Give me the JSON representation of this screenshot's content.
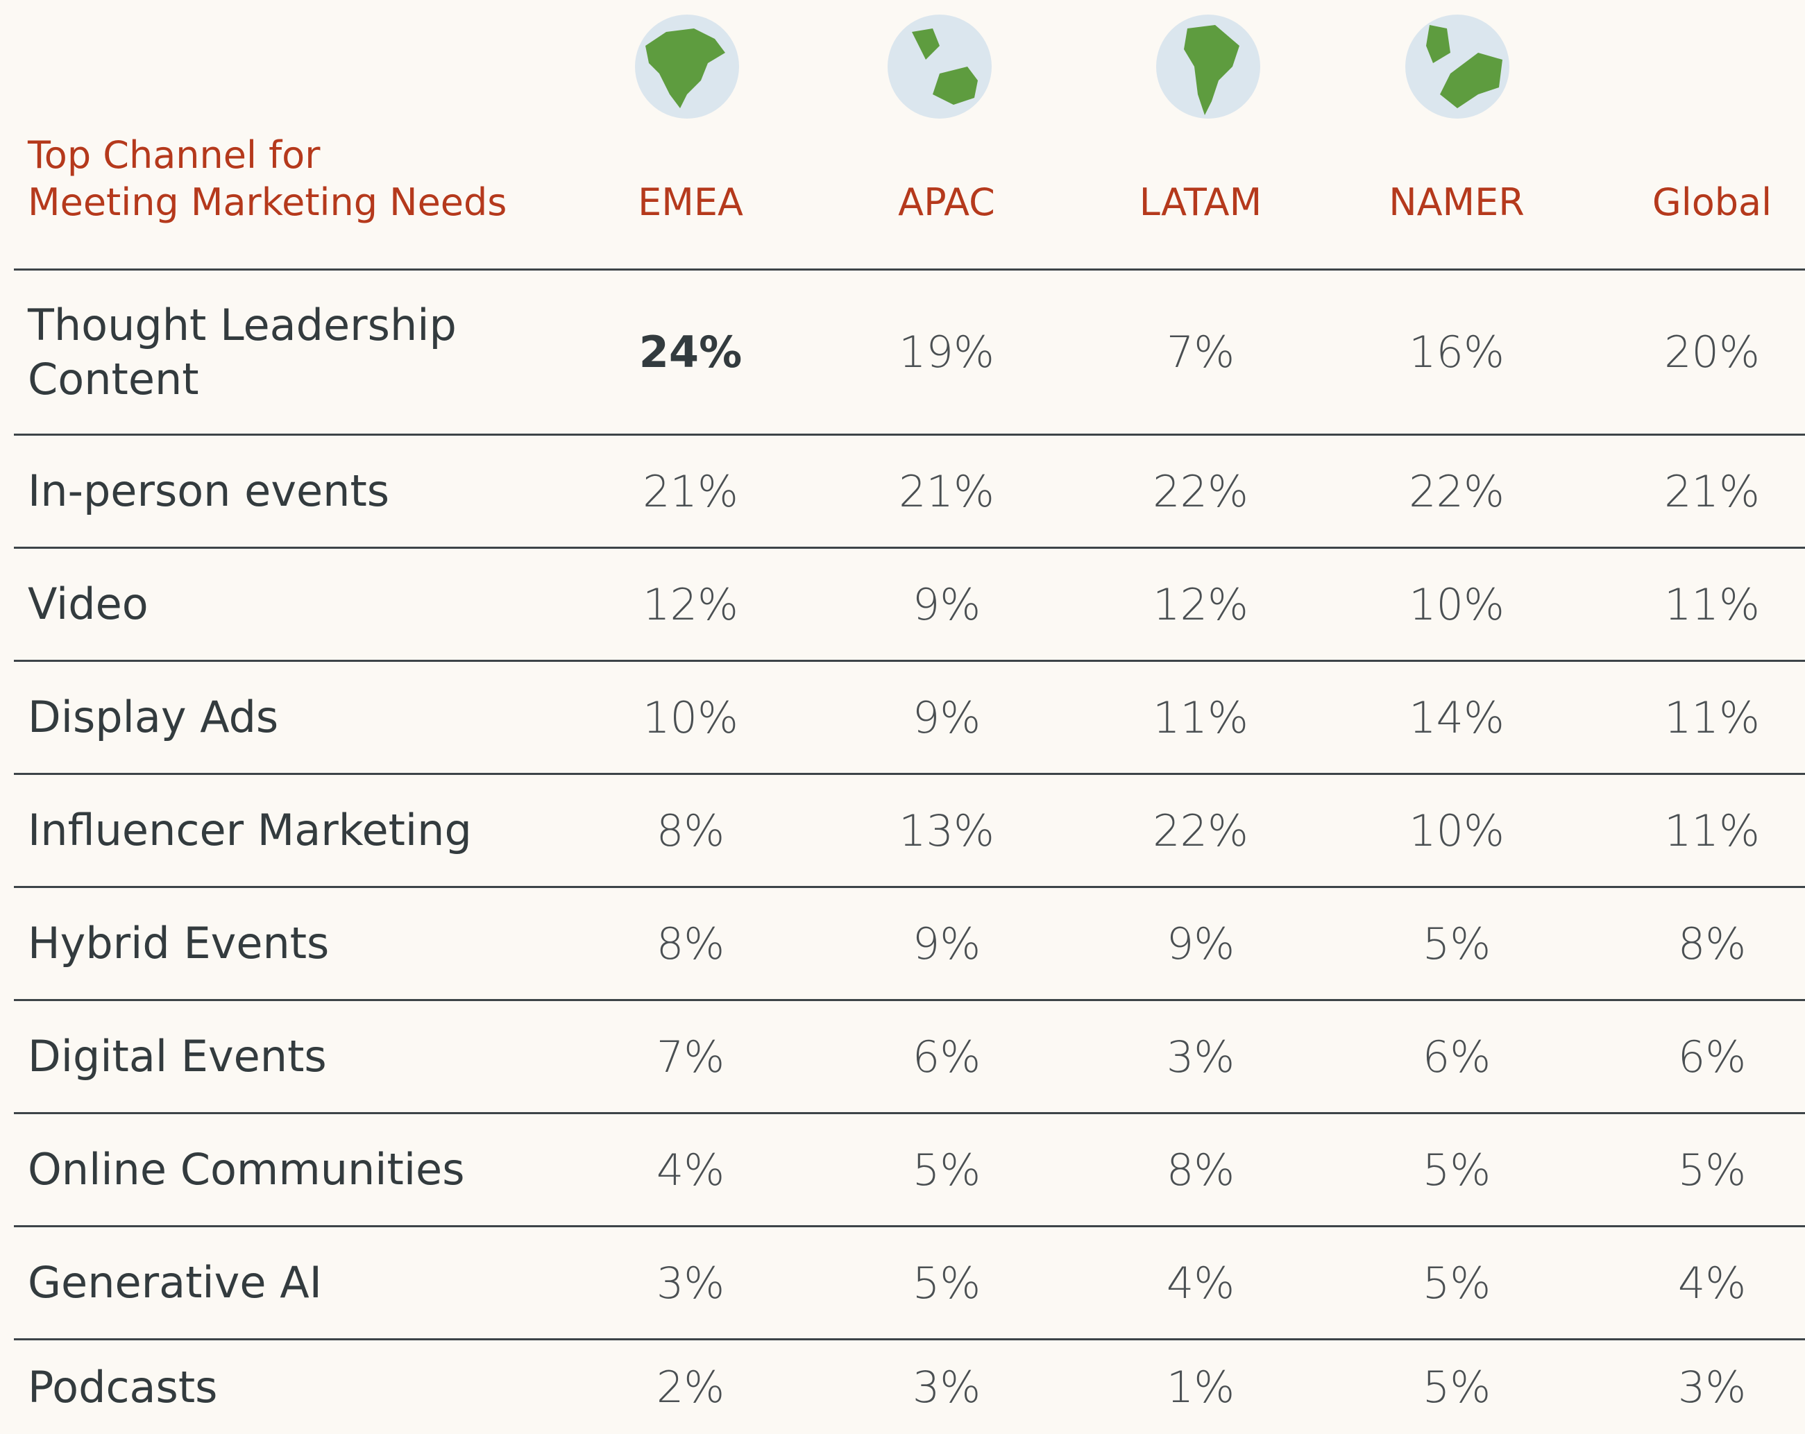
{
  "header": {
    "title_lines": [
      "Top Channel for",
      "Meeting Marketing Needs"
    ],
    "columns": [
      "EMEA",
      "APAC",
      "LATAM",
      "NAMER",
      "Global"
    ]
  },
  "table": {
    "rows": [
      {
        "label": "Thought Leadership Content",
        "values": [
          "24%",
          "19%",
          "7%",
          "16%",
          "20%"
        ]
      },
      {
        "label": "In-person events",
        "values": [
          "21%",
          "21%",
          "22%",
          "22%",
          "21%"
        ]
      },
      {
        "label": "Video",
        "values": [
          "12%",
          "9%",
          "12%",
          "10%",
          "11%"
        ]
      },
      {
        "label": "Display Ads",
        "values": [
          "10%",
          "9%",
          "11%",
          "14%",
          "11%"
        ]
      },
      {
        "label": "Influencer Marketing",
        "values": [
          "8%",
          "13%",
          "22%",
          "10%",
          "11%"
        ]
      },
      {
        "label": "Hybrid Events",
        "values": [
          "8%",
          "9%",
          "9%",
          "5%",
          "8%"
        ]
      },
      {
        "label": "Digital Events",
        "values": [
          "7%",
          "6%",
          "3%",
          "6%",
          "6%"
        ]
      },
      {
        "label": "Online Communities",
        "values": [
          "4%",
          "5%",
          "8%",
          "5%",
          "5%"
        ]
      },
      {
        "label": "Generative AI",
        "values": [
          "3%",
          "5%",
          "4%",
          "5%",
          "4%"
        ]
      },
      {
        "label": "Podcasts",
        "values": [
          "2%",
          "3%",
          "1%",
          "5%",
          "3%"
        ]
      }
    ]
  }
}
